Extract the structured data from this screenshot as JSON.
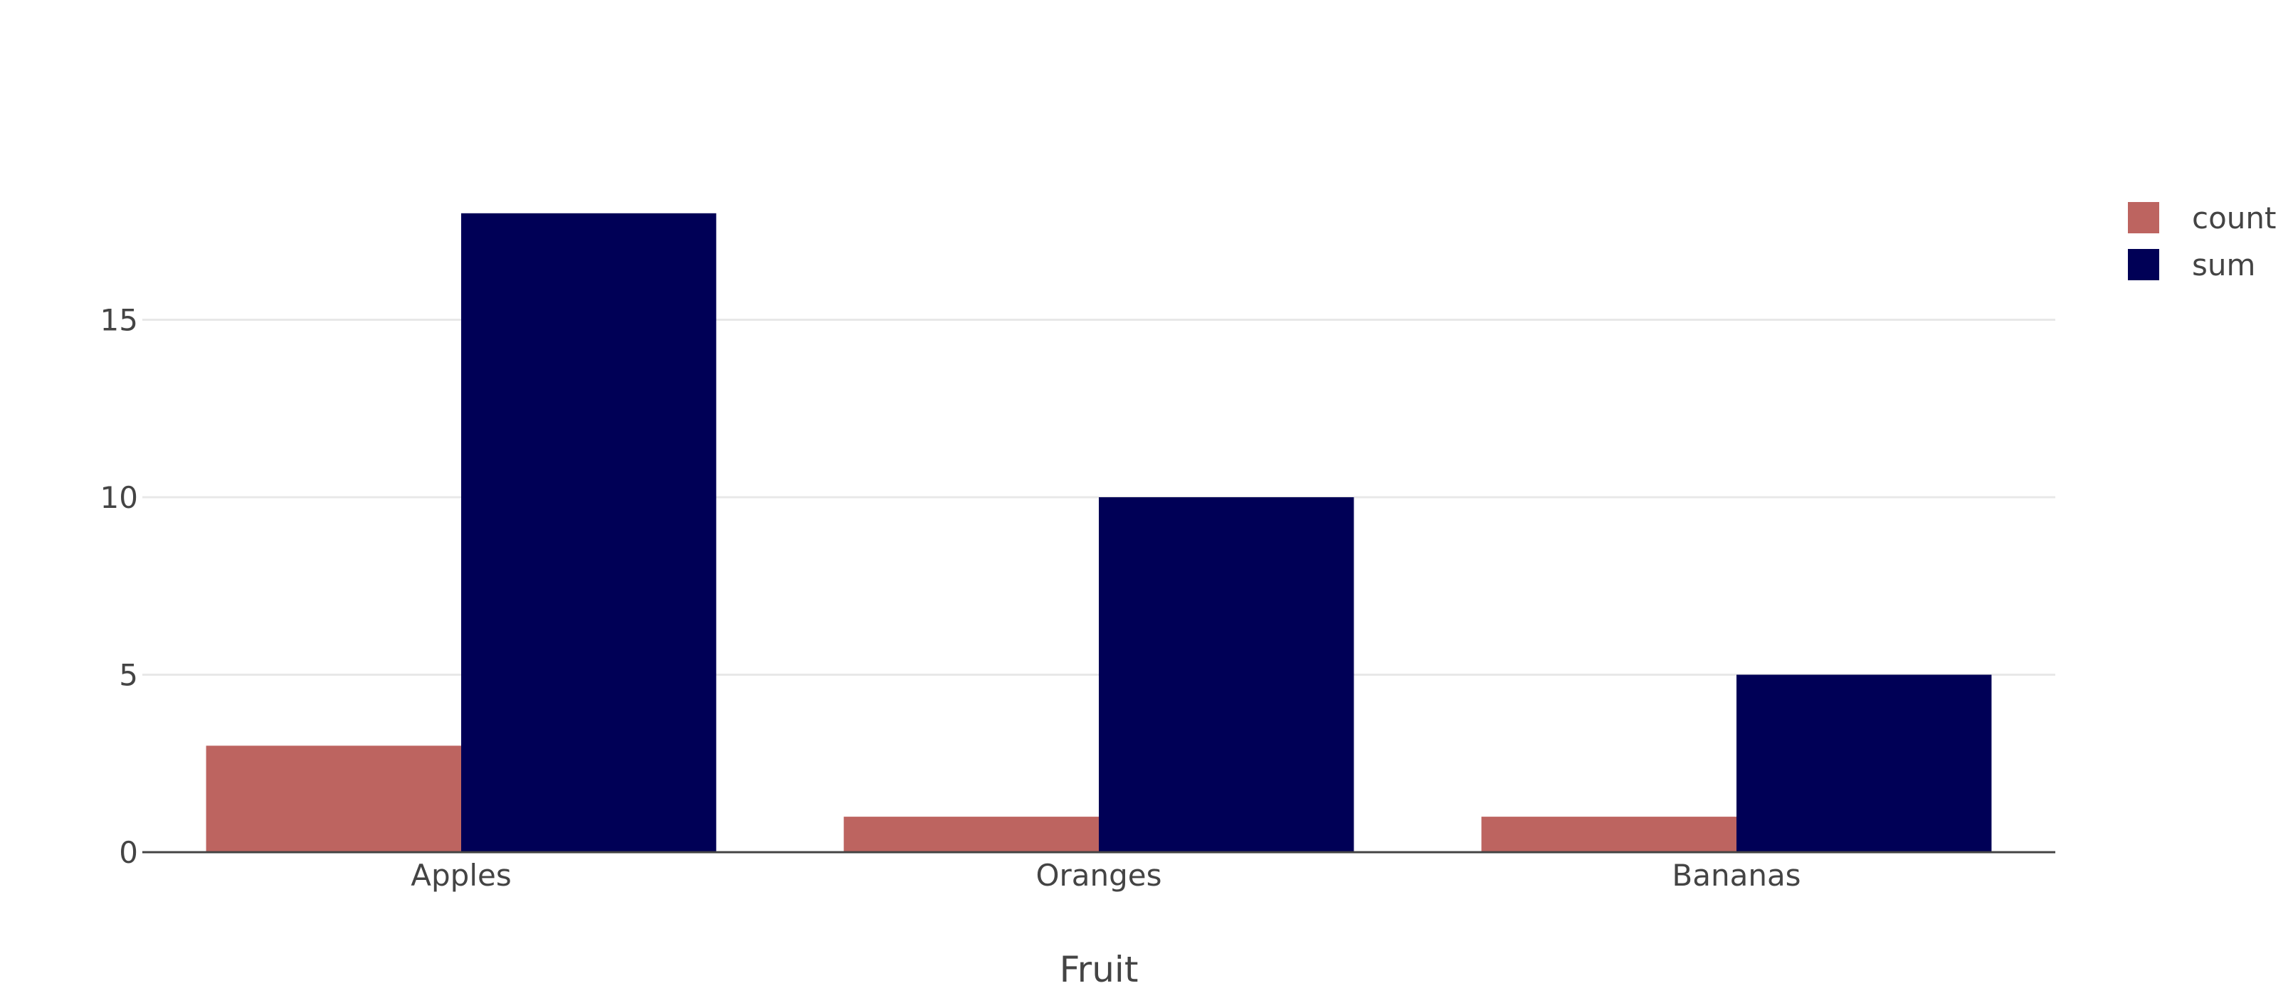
{
  "chart_data": {
    "type": "bar",
    "title": "",
    "xlabel": "Fruit",
    "ylabel": "",
    "categories": [
      "Apples",
      "Oranges",
      "Bananas"
    ],
    "series": [
      {
        "name": "count",
        "values": [
          3,
          1,
          1
        ],
        "color": "#bd6460"
      },
      {
        "name": "sum",
        "values": [
          18,
          10,
          5
        ],
        "color": "#000056"
      }
    ],
    "ylim": [
      0,
      19.5
    ],
    "yticks": [
      0,
      5,
      10,
      15
    ],
    "grid": true,
    "legend_position": "top-right"
  }
}
